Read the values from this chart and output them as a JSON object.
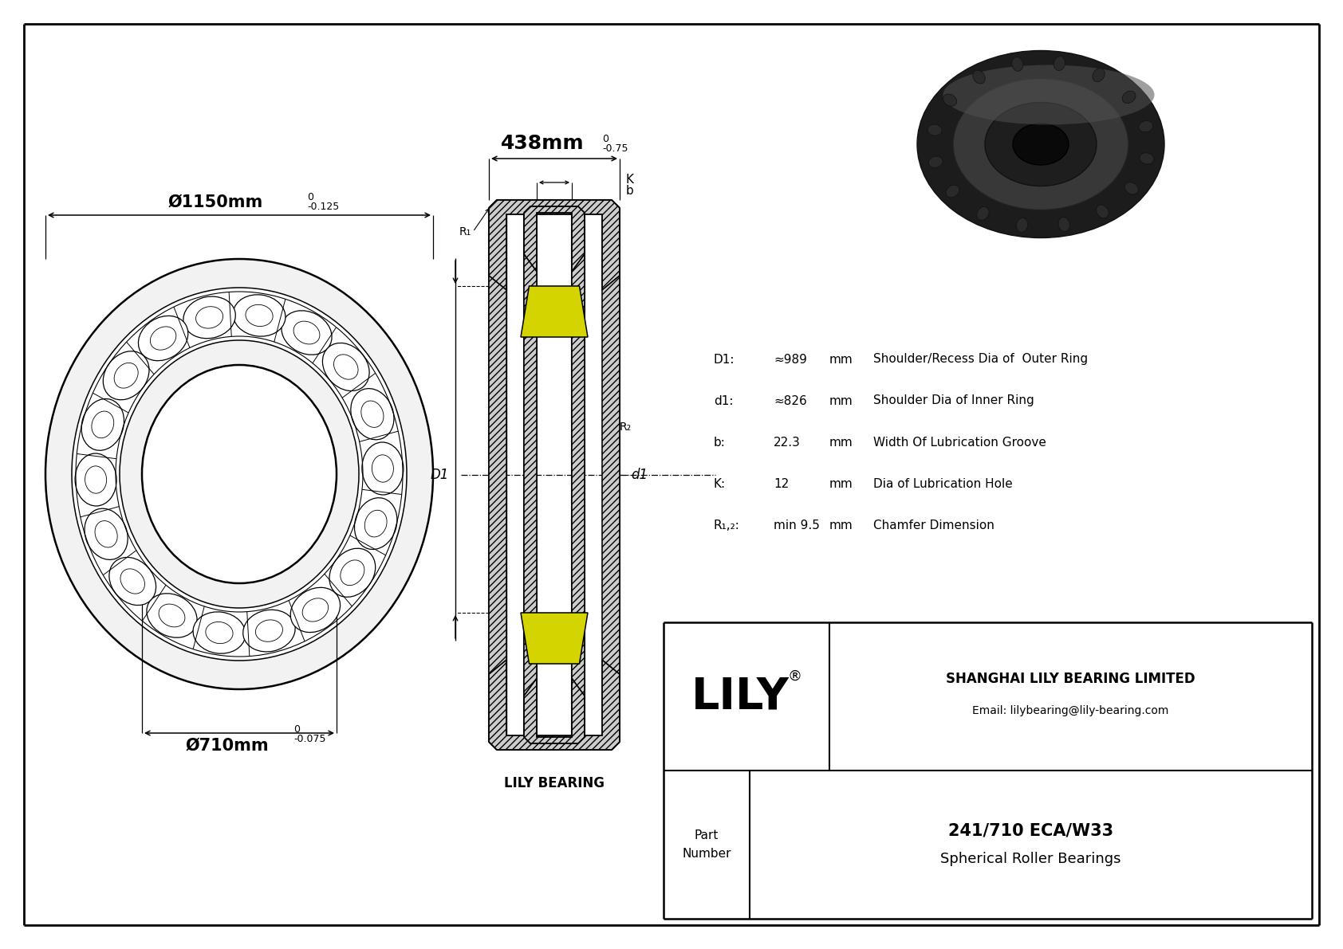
{
  "bg_color": "#ffffff",
  "line_color": "#000000",
  "title": "241/710 ECA/W33",
  "subtitle": "Spherical Roller Bearings",
  "company": "SHANGHAI LILY BEARING LIMITED",
  "email": "Email: lilybearing@lily-bearing.com",
  "brand": "LILY",
  "outer_dia_label": "Ø1150mm",
  "outer_dia_tol_upper": "0",
  "outer_dia_tol_lower": "-0.125",
  "inner_dia_label": "Ø710mm",
  "inner_dia_tol_upper": "0",
  "inner_dia_tol_lower": "-0.075",
  "width_label": "438mm",
  "width_tol_upper": "0",
  "width_tol_lower": "-0.75",
  "specs": [
    {
      "param": "D1:",
      "value": "≈989",
      "unit": "mm",
      "desc": "Shoulder/Recess Dia of  Outer Ring"
    },
    {
      "param": "d1:",
      "value": "≈826",
      "unit": "mm",
      "desc": "Shoulder Dia of Inner Ring"
    },
    {
      "param": "b:",
      "value": "22.3",
      "unit": "mm",
      "desc": "Width Of Lubrication Groove"
    },
    {
      "param": "K:",
      "value": "12",
      "unit": "mm",
      "desc": "Dia of Lubrication Hole"
    },
    {
      "param": "R₁,₂:",
      "value": "min 9.5",
      "unit": "mm",
      "desc": "Chamfer Dimension"
    }
  ],
  "yellow_color": "#d4d400",
  "hatch_color": "#cccccc",
  "n_rollers": 18
}
